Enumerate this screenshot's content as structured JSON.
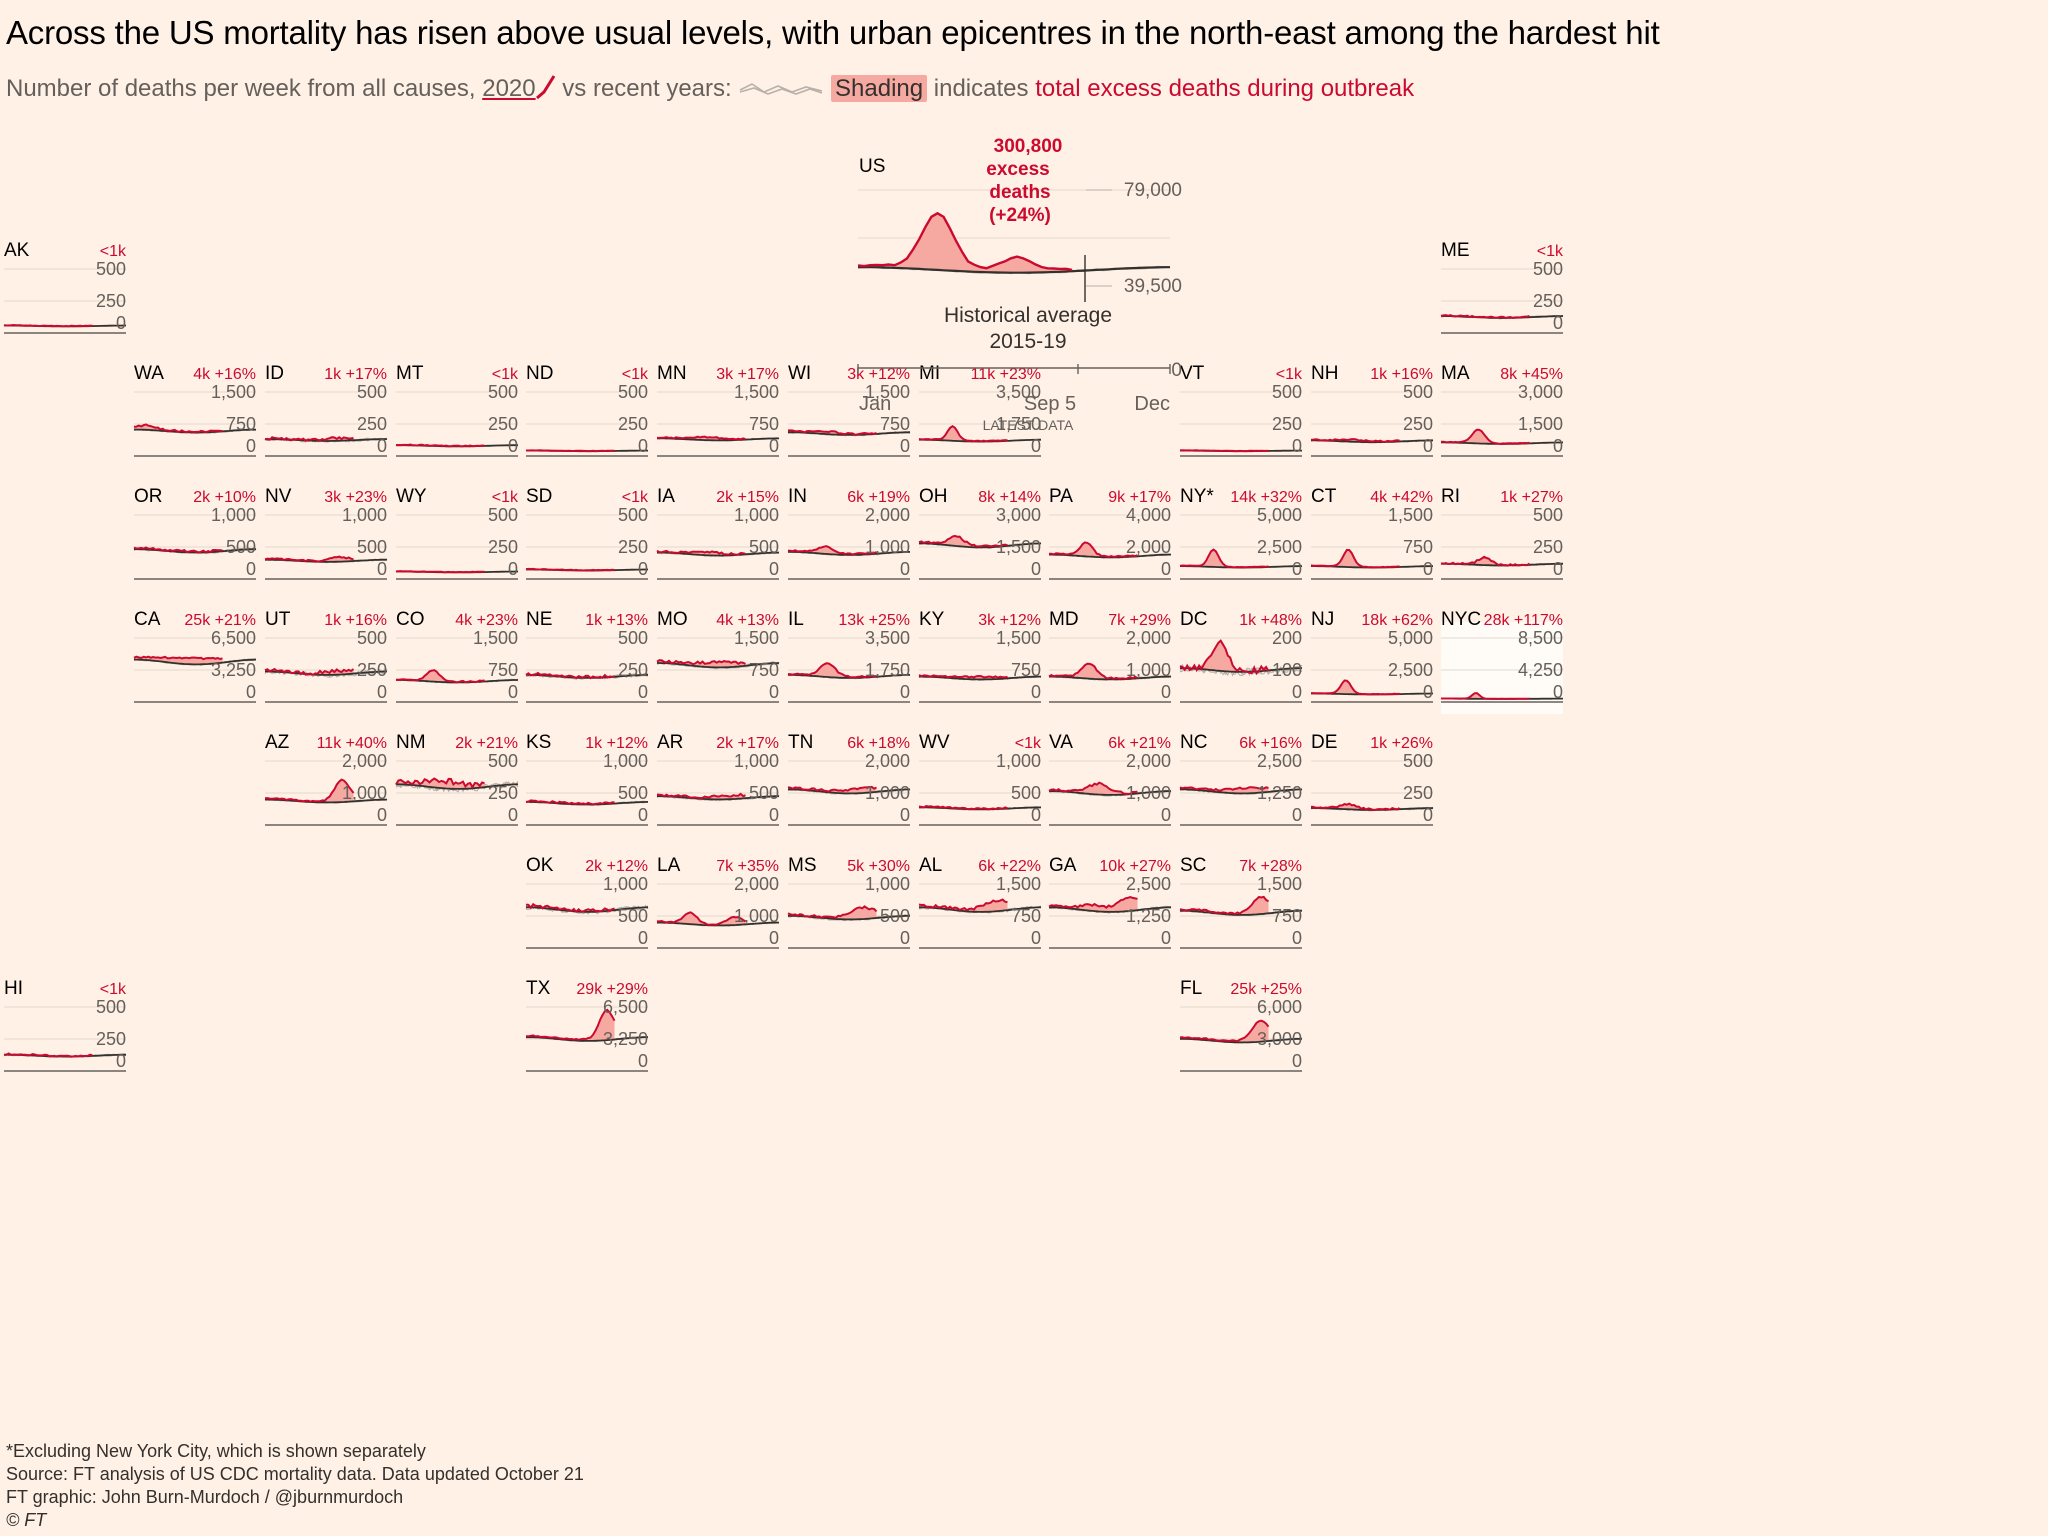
{
  "title": "Across the US mortality has risen above usual levels, with urban epicentres in the north-east among the hardest hit",
  "subtitle": {
    "prefix": "Number of deaths per week from all causes,",
    "year": "2020",
    "vs": "vs recent years:",
    "shading": "Shading",
    "indicates": "indicates",
    "excess": "total excess deaths during outbreak"
  },
  "colors": {
    "background": "#fff1e5",
    "line2020": "#cc0a30",
    "shade": "#f5a9a0",
    "average": "#33302e",
    "recent": "#b8b1aa",
    "label": "#cc0a30"
  },
  "footer": {
    "note": "*Excluding New York City, which is shown separately",
    "source": "Source: FT analysis of US CDC mortality data. Data updated October 21",
    "credit": "FT graphic: John Burn-Murdoch / @jburnmurdoch",
    "copyright": "© FT"
  },
  "chart_data": {
    "type": "line",
    "title": "Number of deaths per week from all causes, 2020 vs recent years",
    "national": {
      "name": "US",
      "excess_label": [
        "300,800",
        "excess",
        "deaths",
        "(+24%)"
      ],
      "ticks": [
        "79,000",
        "39,500",
        "0"
      ],
      "ymax": 79000,
      "x_labels": [
        "Jan",
        "Sep 5",
        "Dec"
      ],
      "latest_label": "LATEST DATA",
      "average_label": [
        "Historical average",
        "2015-19"
      ],
      "baseline": 0.72,
      "peaks": [
        [
          0.25,
          1.2,
          0.05
        ],
        [
          0.5,
          0.3,
          0.05
        ]
      ],
      "weeks_2020": 36,
      "series_note": "2020 weekly deaths vs 2015-19 weekly deaths and historical average"
    },
    "states": [
      {
        "name": "AK",
        "excess": "<1k",
        "pct": "",
        "ticks": [
          "500",
          "250",
          "0"
        ],
        "baseline": 0.22,
        "peaks": [],
        "jitter": 0.06
      },
      {
        "name": "ME",
        "excess": "<1k",
        "pct": "",
        "ticks": [
          "500",
          "250",
          "0"
        ],
        "baseline": 0.5,
        "peaks": [],
        "jitter": 0.07
      },
      {
        "name": "WA",
        "excess": "4k",
        "pct": "+16%",
        "ticks": [
          "1,500",
          "750",
          "0"
        ],
        "baseline": 0.78,
        "peaks": [
          [
            0.1,
            0.15,
            0.06
          ]
        ],
        "jitter": 0.05
      },
      {
        "name": "ID",
        "excess": "1k",
        "pct": "+17%",
        "ticks": [
          "500",
          "250",
          "0"
        ],
        "baseline": 0.5,
        "peaks": [
          [
            0.6,
            0.15,
            0.08
          ]
        ],
        "jitter": 0.12
      },
      {
        "name": "MT",
        "excess": "<1k",
        "pct": "",
        "ticks": [
          "500",
          "250",
          "0"
        ],
        "baseline": 0.32,
        "peaks": [],
        "jitter": 0.06
      },
      {
        "name": "ND",
        "excess": "<1k",
        "pct": "",
        "ticks": [
          "500",
          "250",
          "0"
        ],
        "baseline": 0.16,
        "peaks": [],
        "jitter": 0.04
      },
      {
        "name": "MN",
        "excess": "3k",
        "pct": "+17%",
        "ticks": [
          "1,500",
          "750",
          "0"
        ],
        "baseline": 0.52,
        "peaks": [
          [
            0.4,
            0.15,
            0.12
          ]
        ],
        "jitter": 0.05
      },
      {
        "name": "WI",
        "excess": "3k",
        "pct": "+12%",
        "ticks": [
          "1,500",
          "750",
          "0"
        ],
        "baseline": 0.7,
        "peaks": [
          [
            0.3,
            0.08,
            0.1
          ]
        ],
        "jitter": 0.06
      },
      {
        "name": "MI",
        "excess": "11k",
        "pct": "+23%",
        "ticks": [
          "3,500",
          "1,750",
          "0"
        ],
        "baseline": 0.48,
        "peaks": [
          [
            0.27,
            0.9,
            0.04
          ]
        ],
        "jitter": 0.03
      },
      {
        "name": "VT",
        "excess": "<1k",
        "pct": "",
        "ticks": [
          "500",
          "250",
          "0"
        ],
        "baseline": 0.16,
        "peaks": [],
        "jitter": 0.04
      },
      {
        "name": "NH",
        "excess": "1k",
        "pct": "+16%",
        "ticks": [
          "500",
          "250",
          "0"
        ],
        "baseline": 0.46,
        "peaks": [
          [
            0.35,
            0.1,
            0.1
          ]
        ],
        "jitter": 0.07
      },
      {
        "name": "MA",
        "excess": "8k",
        "pct": "+45%",
        "ticks": [
          "3,000",
          "1,500",
          "0"
        ],
        "baseline": 0.4,
        "peaks": [
          [
            0.3,
            1.05,
            0.05
          ]
        ],
        "jitter": 0.03
      },
      {
        "name": "OR",
        "excess": "2k",
        "pct": "+10%",
        "ticks": [
          "1,000",
          "500",
          "0"
        ],
        "baseline": 0.88,
        "peaks": [],
        "jitter": 0.06
      },
      {
        "name": "NV",
        "excess": "3k",
        "pct": "+23%",
        "ticks": [
          "1,000",
          "500",
          "0"
        ],
        "baseline": 0.57,
        "peaks": [
          [
            0.6,
            0.2,
            0.08
          ]
        ],
        "jitter": 0.06
      },
      {
        "name": "WY",
        "excess": "<1k",
        "pct": "",
        "ticks": [
          "500",
          "250",
          "0"
        ],
        "baseline": 0.22,
        "peaks": [],
        "jitter": 0.05
      },
      {
        "name": "SD",
        "excess": "<1k",
        "pct": "",
        "ticks": [
          "500",
          "250",
          "0"
        ],
        "baseline": 0.28,
        "peaks": [],
        "jitter": 0.05
      },
      {
        "name": "IA",
        "excess": "2k",
        "pct": "+15%",
        "ticks": [
          "1,000",
          "500",
          "0"
        ],
        "baseline": 0.78,
        "peaks": [
          [
            0.4,
            0.1,
            0.1
          ]
        ],
        "jitter": 0.05
      },
      {
        "name": "IN",
        "excess": "6k",
        "pct": "+19%",
        "ticks": [
          "2,000",
          "1,000",
          "0"
        ],
        "baseline": 0.8,
        "peaks": [
          [
            0.3,
            0.25,
            0.06
          ]
        ],
        "jitter": 0.04
      },
      {
        "name": "OH",
        "excess": "8k",
        "pct": "+14%",
        "ticks": [
          "3,000",
          "1,500",
          "0"
        ],
        "baseline": 1.05,
        "peaks": [
          [
            0.3,
            0.25,
            0.06
          ]
        ],
        "jitter": 0.04
      },
      {
        "name": "PA",
        "excess": "9k",
        "pct": "+17%",
        "ticks": [
          "4,000",
          "2,000",
          "0"
        ],
        "baseline": 0.72,
        "peaks": [
          [
            0.3,
            0.55,
            0.05
          ]
        ],
        "jitter": 0.04
      },
      {
        "name": "NY*",
        "excess": "14k",
        "pct": "+32%",
        "ticks": [
          "5,000",
          "2,500",
          "0"
        ],
        "baseline": 0.38,
        "peaks": [
          [
            0.27,
            1.4,
            0.04
          ]
        ],
        "jitter": 0.03
      },
      {
        "name": "CT",
        "excess": "4k",
        "pct": "+42%",
        "ticks": [
          "1,500",
          "750",
          "0"
        ],
        "baseline": 0.38,
        "peaks": [
          [
            0.3,
            1.4,
            0.04
          ]
        ],
        "jitter": 0.04
      },
      {
        "name": "RI",
        "excess": "1k",
        "pct": "+27%",
        "ticks": [
          "500",
          "250",
          "0"
        ],
        "baseline": 0.45,
        "peaks": [
          [
            0.35,
            0.5,
            0.05
          ]
        ],
        "jitter": 0.08
      },
      {
        "name": "CA",
        "excess": "25k",
        "pct": "+21%",
        "ticks": [
          "6,500",
          "3,250",
          "0"
        ],
        "baseline": 1.25,
        "peaks": [
          [
            0.45,
            0.12,
            0.2
          ],
          [
            0.9,
            0.15,
            0.1
          ]
        ],
        "jitter": 0.03
      },
      {
        "name": "UT",
        "excess": "1k",
        "pct": "+16%",
        "ticks": [
          "500",
          "250",
          "0"
        ],
        "baseline": 0.9,
        "peaks": [
          [
            0.6,
            0.1,
            0.1
          ]
        ],
        "jitter": 0.1
      },
      {
        "name": "CO",
        "excess": "4k",
        "pct": "+23%",
        "ticks": [
          "1,500",
          "750",
          "0"
        ],
        "baseline": 0.65,
        "peaks": [
          [
            0.3,
            0.5,
            0.05
          ]
        ],
        "jitter": 0.05
      },
      {
        "name": "NE",
        "excess": "1k",
        "pct": "+13%",
        "ticks": [
          "500",
          "250",
          "0"
        ],
        "baseline": 0.8,
        "peaks": [],
        "jitter": 0.08
      },
      {
        "name": "MO",
        "excess": "4k",
        "pct": "+13%",
        "ticks": [
          "1,500",
          "750",
          "0"
        ],
        "baseline": 1.15,
        "peaks": [
          [
            0.5,
            0.1,
            0.15
          ]
        ],
        "jitter": 0.05
      },
      {
        "name": "IL",
        "excess": "13k",
        "pct": "+25%",
        "ticks": [
          "3,500",
          "1,750",
          "0"
        ],
        "baseline": 0.8,
        "peaks": [
          [
            0.32,
            0.5,
            0.06
          ]
        ],
        "jitter": 0.04
      },
      {
        "name": "KY",
        "excess": "3k",
        "pct": "+12%",
        "ticks": [
          "1,500",
          "750",
          "0"
        ],
        "baseline": 0.75,
        "peaks": [
          [
            0.5,
            0.08,
            0.12
          ]
        ],
        "jitter": 0.05
      },
      {
        "name": "MD",
        "excess": "7k",
        "pct": "+29%",
        "ticks": [
          "2,000",
          "1,000",
          "0"
        ],
        "baseline": 0.75,
        "peaks": [
          [
            0.32,
            0.6,
            0.06
          ]
        ],
        "jitter": 0.05
      },
      {
        "name": "DC",
        "excess": "1k",
        "pct": "+48%",
        "ticks": [
          "200",
          "100",
          "0"
        ],
        "baseline": 1.0,
        "peaks": [
          [
            0.32,
            0.85,
            0.06
          ]
        ],
        "jitter": 0.15
      },
      {
        "name": "NJ",
        "excess": "18k",
        "pct": "+62%",
        "ticks": [
          "5,000",
          "2,500",
          "0"
        ],
        "baseline": 0.25,
        "peaks": [
          [
            0.28,
            1.7,
            0.04
          ]
        ],
        "jitter": 0.03
      },
      {
        "name": "NYC",
        "excess": "28k",
        "pct": "+117%",
        "ticks": [
          "8,500",
          "4,250",
          "0"
        ],
        "baseline": 0.1,
        "peaks": [
          [
            0.28,
            1.8,
            0.03
          ]
        ],
        "jitter": 0.02
      },
      {
        "name": "AZ",
        "excess": "11k",
        "pct": "+40%",
        "ticks": [
          "2,000",
          "1,000",
          "0"
        ],
        "baseline": 0.75,
        "peaks": [
          [
            0.62,
            0.9,
            0.06
          ]
        ],
        "jitter": 0.04
      },
      {
        "name": "NM",
        "excess": "2k",
        "pct": "+21%",
        "ticks": [
          "500",
          "250",
          "0"
        ],
        "baseline": 1.2,
        "peaks": [
          [
            0.4,
            0.15,
            0.15
          ]
        ],
        "jitter": 0.1
      },
      {
        "name": "KS",
        "excess": "1k",
        "pct": "+12%",
        "ticks": [
          "1,000",
          "500",
          "0"
        ],
        "baseline": 0.68,
        "peaks": [],
        "jitter": 0.06
      },
      {
        "name": "AR",
        "excess": "2k",
        "pct": "+17%",
        "ticks": [
          "1,000",
          "500",
          "0"
        ],
        "baseline": 0.85,
        "peaks": [
          [
            0.6,
            0.1,
            0.15
          ]
        ],
        "jitter": 0.06
      },
      {
        "name": "TN",
        "excess": "6k",
        "pct": "+18%",
        "ticks": [
          "2,000",
          "1,000",
          "0"
        ],
        "baseline": 1.05,
        "peaks": [
          [
            0.6,
            0.1,
            0.15
          ]
        ],
        "jitter": 0.05
      },
      {
        "name": "WV",
        "excess": "<1k",
        "pct": "",
        "ticks": [
          "1,000",
          "500",
          "0"
        ],
        "baseline": 0.52,
        "peaks": [],
        "jitter": 0.06
      },
      {
        "name": "VA",
        "excess": "6k",
        "pct": "+21%",
        "ticks": [
          "2,000",
          "1,000",
          "0"
        ],
        "baseline": 1.0,
        "peaks": [
          [
            0.4,
            0.3,
            0.08
          ]
        ],
        "jitter": 0.05
      },
      {
        "name": "NC",
        "excess": "6k",
        "pct": "+16%",
        "ticks": [
          "2,500",
          "1,250",
          "0"
        ],
        "baseline": 1.05,
        "peaks": [
          [
            0.55,
            0.12,
            0.15
          ]
        ],
        "jitter": 0.04
      },
      {
        "name": "DE",
        "excess": "1k",
        "pct": "+26%",
        "ticks": [
          "500",
          "250",
          "0"
        ],
        "baseline": 0.5,
        "peaks": [
          [
            0.3,
            0.3,
            0.06
          ]
        ],
        "jitter": 0.08
      },
      {
        "name": "OK",
        "excess": "2k",
        "pct": "+12%",
        "ticks": [
          "1,000",
          "500",
          "0"
        ],
        "baseline": 1.2,
        "peaks": [],
        "jitter": 0.07
      },
      {
        "name": "LA",
        "excess": "7k",
        "pct": "+35%",
        "ticks": [
          "2,000",
          "1,000",
          "0"
        ],
        "baseline": 0.75,
        "peaks": [
          [
            0.27,
            0.45,
            0.05
          ],
          [
            0.62,
            0.3,
            0.06
          ]
        ],
        "jitter": 0.04
      },
      {
        "name": "MS",
        "excess": "5k",
        "pct": "+30%",
        "ticks": [
          "1,000",
          "500",
          "0"
        ],
        "baseline": 0.95,
        "peaks": [
          [
            0.6,
            0.35,
            0.1
          ]
        ],
        "jitter": 0.06
      },
      {
        "name": "AL",
        "excess": "6k",
        "pct": "+22%",
        "ticks": [
          "1,500",
          "750",
          "0"
        ],
        "baseline": 1.2,
        "peaks": [
          [
            0.62,
            0.25,
            0.1
          ]
        ],
        "jitter": 0.05
      },
      {
        "name": "GA",
        "excess": "10k",
        "pct": "+27%",
        "ticks": [
          "2,500",
          "1,250",
          "0"
        ],
        "baseline": 1.2,
        "peaks": [
          [
            0.35,
            0.12,
            0.08
          ],
          [
            0.65,
            0.3,
            0.1
          ]
        ],
        "jitter": 0.04
      },
      {
        "name": "SC",
        "excess": "7k",
        "pct": "+28%",
        "ticks": [
          "1,500",
          "750",
          "0"
        ],
        "baseline": 1.1,
        "peaks": [
          [
            0.65,
            0.45,
            0.07
          ]
        ],
        "jitter": 0.04
      },
      {
        "name": "HI",
        "excess": "<1k",
        "pct": "",
        "ticks": [
          "500",
          "250",
          "0"
        ],
        "baseline": 0.48,
        "peaks": [],
        "jitter": 0.08
      },
      {
        "name": "TX",
        "excess": "29k",
        "pct": "+29%",
        "ticks": [
          "6,500",
          "3,250",
          "0"
        ],
        "baseline": 1.0,
        "peaks": [
          [
            0.65,
            0.9,
            0.06
          ]
        ],
        "jitter": 0.03
      },
      {
        "name": "FL",
        "excess": "25k",
        "pct": "+25%",
        "ticks": [
          "6,000",
          "3,000",
          "0"
        ],
        "baseline": 0.95,
        "peaks": [
          [
            0.65,
            0.65,
            0.07
          ]
        ],
        "jitter": 0.03
      }
    ]
  }
}
